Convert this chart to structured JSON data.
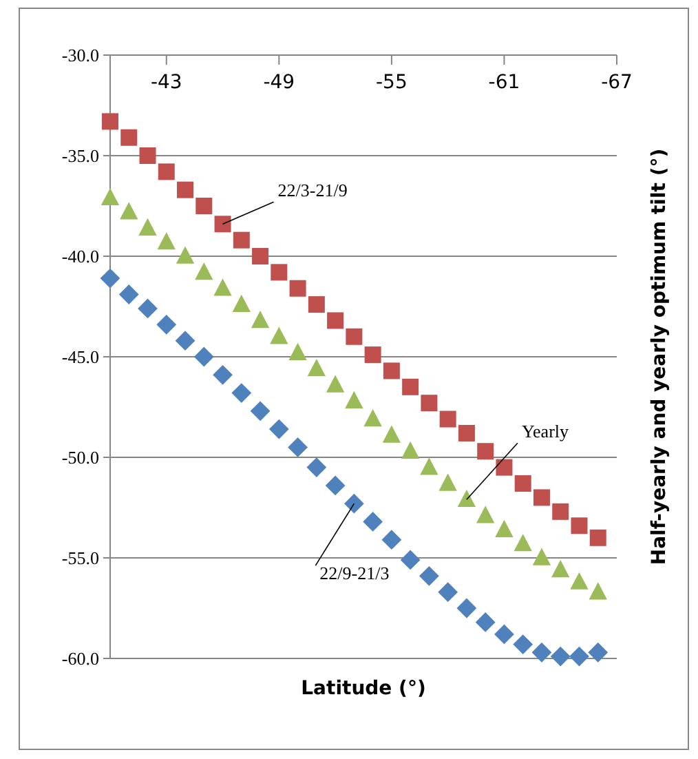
{
  "chart_data": {
    "type": "scatter",
    "xlabel": "Latitude (°)",
    "ylabel": "Half-yearly and yearly optimum tilt (°)",
    "x": [
      -40,
      -41,
      -42,
      -43,
      -44,
      -45,
      -46,
      -47,
      -48,
      -49,
      -50,
      -51,
      -52,
      -53,
      -54,
      -55,
      -56,
      -57,
      -58,
      -59,
      -60,
      -61,
      -62,
      -63,
      -64,
      -65,
      -66
    ],
    "series": [
      {
        "name": "22/3-21/9",
        "color": "#c0504d",
        "marker": "square",
        "values": [
          -33.3,
          -34.1,
          -35.0,
          -35.8,
          -36.7,
          -37.5,
          -38.4,
          -39.2,
          -40.0,
          -40.8,
          -41.6,
          -42.4,
          -43.2,
          -44.0,
          -44.9,
          -45.7,
          -46.5,
          -47.3,
          -48.1,
          -48.8,
          -49.7,
          -50.5,
          -51.3,
          -52.0,
          -52.7,
          -53.4,
          -54.0
        ]
      },
      {
        "name": "Yearly",
        "color": "#9bbb59",
        "marker": "triangle",
        "values": [
          -37.1,
          -37.8,
          -38.6,
          -39.3,
          -40.0,
          -40.8,
          -41.6,
          -42.4,
          -43.2,
          -44.0,
          -44.8,
          -45.6,
          -46.4,
          -47.2,
          -48.1,
          -48.9,
          -49.7,
          -50.5,
          -51.3,
          -52.1,
          -52.9,
          -53.6,
          -54.3,
          -55.0,
          -55.6,
          -56.2,
          -56.7
        ]
      },
      {
        "name": "22/9-21/3",
        "color": "#4f81bd",
        "marker": "diamond",
        "values": [
          -41.1,
          -41.9,
          -42.6,
          -43.4,
          -44.2,
          -45.0,
          -45.9,
          -46.8,
          -47.7,
          -48.6,
          -49.5,
          -50.5,
          -51.4,
          -52.3,
          -53.2,
          -54.1,
          -55.1,
          -55.9,
          -56.7,
          -57.5,
          -58.2,
          -58.8,
          -59.3,
          -59.7,
          -59.9,
          -59.9,
          -59.7
        ]
      }
    ],
    "xlim": [
      -40,
      -67
    ],
    "xticks": [
      -43,
      -49,
      -55,
      -61,
      -67
    ],
    "ylim": [
      -60,
      -30
    ],
    "yticks": [
      {
        "value": -30,
        "label": "-30.0"
      },
      {
        "value": -35,
        "label": "-35.0"
      },
      {
        "value": -40,
        "label": "-40.0"
      },
      {
        "value": -45,
        "label": "-45.0"
      },
      {
        "value": -50,
        "label": "-50.0"
      },
      {
        "value": -55,
        "label": "-55.0"
      },
      {
        "value": -60,
        "label": "-60.0"
      }
    ],
    "grid": "y"
  }
}
